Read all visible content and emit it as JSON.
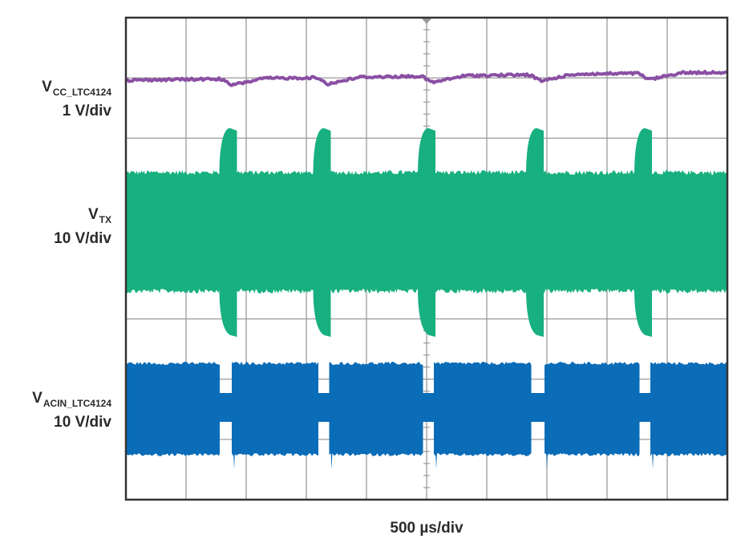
{
  "chart_data": {
    "type": "line",
    "title": "",
    "xlabel": "500 µs/div",
    "grid": true,
    "grid_divisions": {
      "x": 10,
      "y": 8
    },
    "time_per_div_us": 500,
    "xlim_us": [
      0,
      5000
    ],
    "series": [
      {
        "name": "VCC_LTC4124",
        "label_main": "V",
        "label_sub": "CC_LTC4124",
        "scale": "1 V/div",
        "color": "#8a4fa3",
        "dip_times_us": [
          880,
          1680,
          2550,
          3450,
          4350
        ]
      },
      {
        "name": "VTX",
        "label_main": "V",
        "label_sub": "TX",
        "scale": "10 V/div",
        "color": "#18b080",
        "burst_times_us": [
          850,
          1630,
          2500,
          3400,
          4300
        ]
      },
      {
        "name": "VACIN_LTC4124",
        "label_main": "V",
        "label_sub": "ACIN_LTC4124",
        "scale": "10 V/div",
        "color": "#0b6cb8",
        "gap_ranges_us": [
          [
            780,
            880
          ],
          [
            1600,
            1690
          ],
          [
            2470,
            2560
          ],
          [
            3370,
            3480
          ],
          [
            4270,
            4360
          ]
        ]
      }
    ]
  }
}
